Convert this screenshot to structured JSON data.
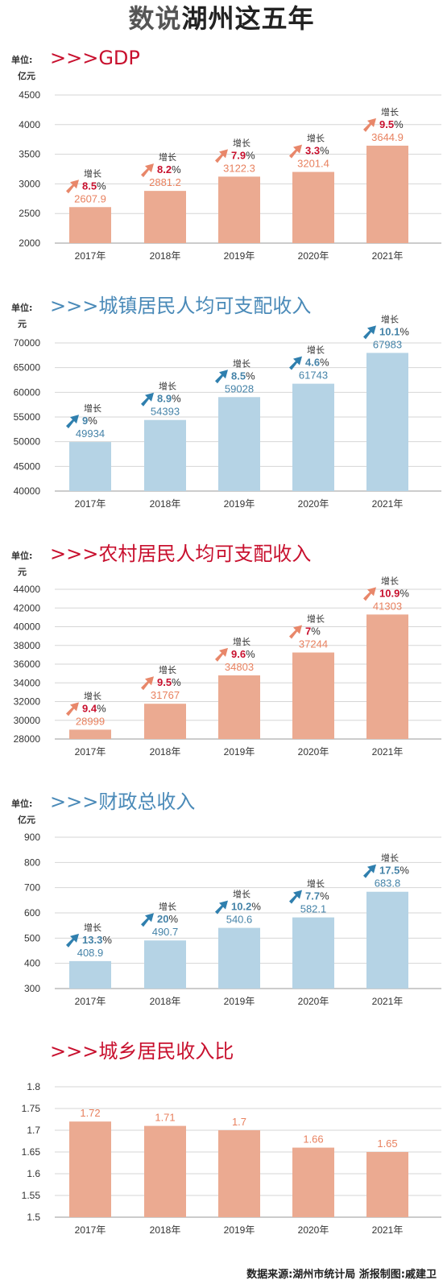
{
  "page": {
    "title_part1": "数说",
    "title_part2": "湖州这五年"
  },
  "colors": {
    "orange_bar": "#ebaa91",
    "orange_text": "#e8815f",
    "red_accent": "#c8102e",
    "blue_bar": "#b5d3e5",
    "blue_text": "#4583a8",
    "blue_title": "#4a8ab8"
  },
  "chart_data": [
    {
      "id": "gdp",
      "type": "bar",
      "theme": "orange",
      "title": ">>>GDP",
      "unit_label": [
        "单位:",
        "亿元"
      ],
      "categories": [
        "2017年",
        "2018年",
        "2019年",
        "2020年",
        "2021年"
      ],
      "values": [
        2607.9,
        2881.2,
        3122.3,
        3201.4,
        3644.9
      ],
      "value_labels": [
        "2607.9",
        "2881.2",
        "3122.3",
        "3201.4",
        "3644.9"
      ],
      "growth_label": "增长",
      "growth": [
        "8.5",
        "8.2",
        "7.9",
        "3.3",
        "9.5"
      ],
      "ylim": [
        2000,
        4500
      ],
      "yticks": [
        2000,
        2500,
        3000,
        3500,
        4000,
        4500
      ]
    },
    {
      "id": "urban-income",
      "type": "bar",
      "theme": "blue",
      "title": ">>>城镇居民人均可支配收入",
      "unit_label": [
        "单位:",
        "元"
      ],
      "categories": [
        "2017年",
        "2018年",
        "2019年",
        "2020年",
        "2021年"
      ],
      "values": [
        49934,
        54393,
        59028,
        61743,
        67983
      ],
      "value_labels": [
        "49934",
        "54393",
        "59028",
        "61743",
        "67983"
      ],
      "growth_label": "增长",
      "growth": [
        "9",
        "8.9",
        "8.5",
        "4.6",
        "10.1"
      ],
      "ylim": [
        40000,
        70000
      ],
      "yticks": [
        40000,
        45000,
        50000,
        55000,
        60000,
        65000,
        70000
      ]
    },
    {
      "id": "rural-income",
      "type": "bar",
      "theme": "orange",
      "title": ">>>农村居民人均可支配收入",
      "unit_label": [
        "单位:",
        "元"
      ],
      "categories": [
        "2017年",
        "2018年",
        "2019年",
        "2020年",
        "2021年"
      ],
      "values": [
        28999,
        31767,
        34803,
        37244,
        41303
      ],
      "value_labels": [
        "28999",
        "31767",
        "34803",
        "37244",
        "41303"
      ],
      "growth_label": "增长",
      "growth": [
        "9.4",
        "9.5",
        "9.6",
        "7",
        "10.9"
      ],
      "ylim": [
        28000,
        44000
      ],
      "yticks": [
        28000,
        30000,
        32000,
        34000,
        36000,
        38000,
        40000,
        42000,
        44000
      ]
    },
    {
      "id": "fiscal-revenue",
      "type": "bar",
      "theme": "blue",
      "title": ">>>财政总收入",
      "unit_label": [
        "单位:",
        "亿元"
      ],
      "categories": [
        "2017年",
        "2018年",
        "2019年",
        "2020年",
        "2021年"
      ],
      "values": [
        408.9,
        490.7,
        540.6,
        582.1,
        683.8
      ],
      "value_labels": [
        "408.9",
        "490.7",
        "540.6",
        "582.1",
        "683.8"
      ],
      "growth_label": "增长",
      "growth": [
        "13.3",
        "20",
        "10.2",
        "7.7",
        "17.5"
      ],
      "ylim": [
        300,
        900
      ],
      "yticks": [
        300,
        400,
        500,
        600,
        700,
        800,
        900
      ]
    },
    {
      "id": "income-ratio",
      "type": "bar",
      "theme": "orange",
      "title": ">>>城乡居民收入比",
      "unit_label": [],
      "categories": [
        "2017年",
        "2018年",
        "2019年",
        "2020年",
        "2021年"
      ],
      "values": [
        1.72,
        1.71,
        1.7,
        1.66,
        1.65
      ],
      "value_labels": [
        "1.72",
        "1.71",
        "1.7",
        "1.66",
        "1.65"
      ],
      "growth_label": "",
      "growth": [],
      "ylim": [
        1.5,
        1.8
      ],
      "yticks": [
        1.5,
        1.55,
        1.6,
        1.65,
        1.7,
        1.75,
        1.8
      ]
    }
  ],
  "footer": "数据来源:湖州市统计局   浙报制图:戚建卫"
}
